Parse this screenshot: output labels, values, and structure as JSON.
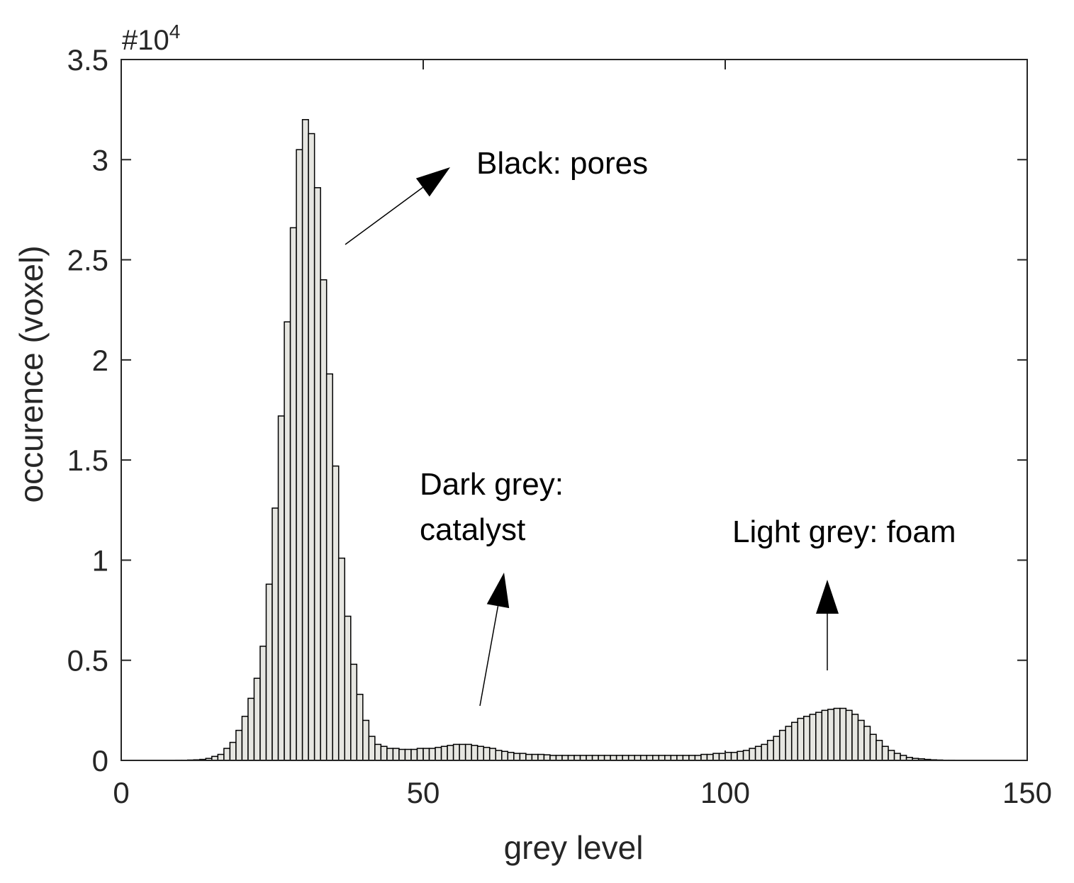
{
  "chart_data": {
    "type": "histogram",
    "xlabel": "grey level",
    "ylabel": "occurence (voxel)",
    "y_multiplier": {
      "base": "#10",
      "exponent": "4"
    },
    "color": "#e6e6e1",
    "edgecolor": "#000000",
    "xlim": [
      0,
      150
    ],
    "xticks": [
      0,
      50,
      100,
      150
    ],
    "ylim": [
      0,
      3.5
    ],
    "yticks": [
      0,
      0.5,
      1,
      1.5,
      2,
      2.5,
      3,
      3.5
    ],
    "bins": [
      8,
      9,
      10,
      11,
      12,
      13,
      14,
      15,
      16,
      17,
      18,
      19,
      20,
      21,
      22,
      23,
      24,
      25,
      26,
      27,
      28,
      29,
      30,
      31,
      32,
      33,
      34,
      35,
      36,
      37,
      38,
      39,
      40,
      41,
      42,
      43,
      44,
      45,
      46,
      47,
      48,
      49,
      50,
      51,
      52,
      53,
      54,
      55,
      56,
      57,
      58,
      59,
      60,
      61,
      62,
      63,
      64,
      65,
      66,
      67,
      68,
      69,
      70,
      71,
      72,
      73,
      74,
      75,
      76,
      77,
      78,
      79,
      80,
      81,
      82,
      83,
      84,
      85,
      86,
      87,
      88,
      89,
      90,
      91,
      92,
      93,
      94,
      95,
      96,
      97,
      98,
      99,
      100,
      101,
      102,
      103,
      104,
      105,
      106,
      107,
      108,
      109,
      110,
      111,
      112,
      113,
      114,
      115,
      116,
      117,
      118,
      119,
      120,
      121,
      122,
      123,
      124,
      125,
      126,
      127,
      128,
      129,
      130,
      131,
      132,
      133,
      134,
      135,
      136,
      137,
      138,
      139,
      140
    ],
    "values": [
      0.0005,
      0.001,
      0.001,
      0.002,
      0.003,
      0.005,
      0.01,
      0.02,
      0.03,
      0.06,
      0.09,
      0.15,
      0.22,
      0.31,
      0.41,
      0.57,
      0.88,
      1.26,
      1.72,
      2.19,
      2.66,
      3.05,
      3.2,
      3.13,
      2.86,
      2.4,
      1.93,
      1.47,
      1.01,
      0.72,
      0.48,
      0.33,
      0.2,
      0.12,
      0.08,
      0.07,
      0.06,
      0.06,
      0.055,
      0.055,
      0.055,
      0.06,
      0.06,
      0.06,
      0.065,
      0.07,
      0.075,
      0.08,
      0.08,
      0.08,
      0.075,
      0.07,
      0.065,
      0.06,
      0.05,
      0.045,
      0.04,
      0.035,
      0.035,
      0.03,
      0.03,
      0.03,
      0.028,
      0.025,
      0.025,
      0.025,
      0.025,
      0.025,
      0.025,
      0.025,
      0.025,
      0.025,
      0.025,
      0.025,
      0.025,
      0.025,
      0.025,
      0.025,
      0.025,
      0.025,
      0.025,
      0.025,
      0.025,
      0.025,
      0.025,
      0.025,
      0.025,
      0.025,
      0.03,
      0.03,
      0.035,
      0.035,
      0.04,
      0.04,
      0.045,
      0.05,
      0.06,
      0.07,
      0.08,
      0.1,
      0.12,
      0.15,
      0.17,
      0.19,
      0.21,
      0.22,
      0.23,
      0.24,
      0.25,
      0.255,
      0.26,
      0.26,
      0.25,
      0.23,
      0.2,
      0.17,
      0.13,
      0.1,
      0.07,
      0.05,
      0.035,
      0.025,
      0.015,
      0.01,
      0.008,
      0.005,
      0.003,
      0.002,
      0.001,
      0.001,
      0.0005,
      0.0005
    ],
    "annotations": [
      {
        "lines": [
          "Black: pores"
        ]
      },
      {
        "lines": [
          "Dark grey:",
          "catalyst"
        ]
      },
      {
        "lines": [
          "Light grey: foam"
        ]
      }
    ]
  }
}
